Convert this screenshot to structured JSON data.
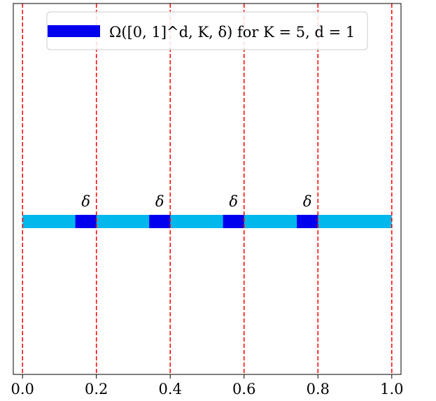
{
  "chart_data": {
    "type": "bar",
    "title": "",
    "xlabel": "",
    "ylabel": "",
    "xlim": [
      -0.025,
      1.025
    ],
    "xticks": [
      0.0,
      0.2,
      0.4,
      0.6,
      0.8,
      1.0
    ],
    "xtick_labels": [
      "0.0",
      "0.2",
      "0.4",
      "0.6",
      "0.8",
      "1.0"
    ],
    "grid": false,
    "vlines": [
      0.0,
      0.2,
      0.4,
      0.6,
      0.8,
      1.0
    ],
    "vline_color": "#ff0000",
    "domain_segment": {
      "start": 0.0,
      "end": 1.0,
      "color": "#00b8ec"
    },
    "omega_segments": [
      {
        "start": 0.143,
        "end": 0.2,
        "label": "δ"
      },
      {
        "start": 0.343,
        "end": 0.4,
        "label": "δ"
      },
      {
        "start": 0.543,
        "end": 0.6,
        "label": "δ"
      },
      {
        "start": 0.743,
        "end": 0.8,
        "label": "δ"
      }
    ],
    "omega_color": "#0000ee",
    "legend": {
      "placement": "top-center",
      "entries": [
        {
          "label": "Ω([0, 1]^d, K, δ) for K = 5, d = 1",
          "color": "#0000ee"
        }
      ]
    }
  }
}
